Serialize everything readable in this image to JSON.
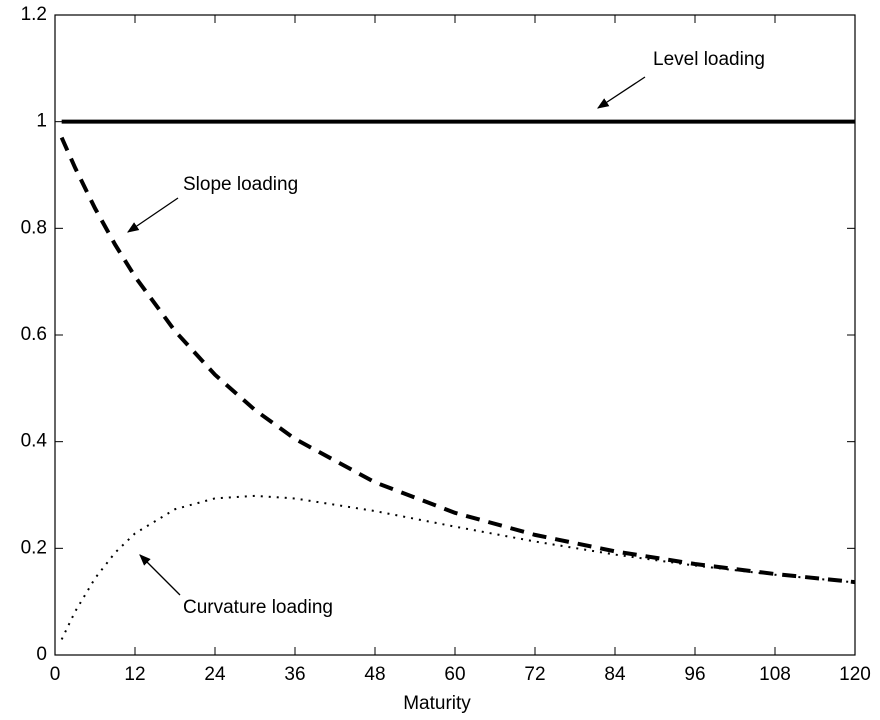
{
  "chart_data": {
    "type": "line",
    "x_label": "Maturity",
    "x": [
      1,
      3,
      6,
      9,
      12,
      18,
      24,
      30,
      36,
      48,
      60,
      72,
      84,
      96,
      108,
      120
    ],
    "series": [
      {
        "name": "Level loading",
        "color": "#000000",
        "dash": "solid",
        "values": [
          1,
          1,
          1,
          1,
          1,
          1,
          1,
          1,
          1,
          1,
          1,
          1,
          1,
          1,
          1,
          1
        ]
      },
      {
        "name": "Slope loading",
        "color": "#000000",
        "dash": "dashed",
        "values": [
          0.9701,
          0.914,
          0.8376,
          0.7698,
          0.7095,
          0.6074,
          0.5255,
          0.4593,
          0.4052,
          0.3237,
          0.2666,
          0.2252,
          0.1943,
          0.1706,
          0.1518,
          0.1367
        ]
      },
      {
        "name": "Curvature loading",
        "color": "#000000",
        "dash": "dotted",
        "values": [
          0.0292,
          0.081,
          0.1437,
          0.1917,
          0.228,
          0.2733,
          0.2937,
          0.2984,
          0.2935,
          0.2699,
          0.2407,
          0.2128,
          0.1883,
          0.1677,
          0.1504,
          0.1361
        ]
      }
    ],
    "xlim": [
      0,
      120
    ],
    "xticks": [
      0,
      12,
      24,
      36,
      48,
      60,
      72,
      84,
      96,
      108,
      120
    ],
    "ylim": [
      0,
      1.2
    ],
    "yticks": [
      0,
      0.2,
      0.4,
      0.6,
      0.8,
      1,
      1.2
    ],
    "grid": false
  }
}
